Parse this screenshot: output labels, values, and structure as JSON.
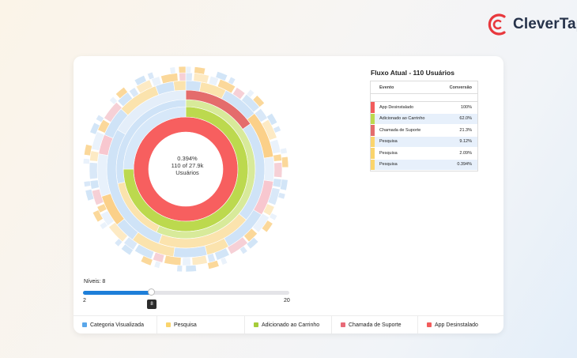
{
  "brand": {
    "name": "CleverTap",
    "accent": "#e8383d"
  },
  "center": {
    "line1": "0.394%",
    "line2": "110 of 27.9k",
    "line3": "Usuários"
  },
  "flow": {
    "title": "Fluxo Atual - 110 Usuários",
    "col_event": "Evento",
    "col_conversion": "Conversão",
    "rows": [
      {
        "event": "App Desinstalado",
        "conversion": "100%",
        "color": "#f25c5c"
      },
      {
        "event": "Adicionado ao Carrinho",
        "conversion": "62.0%",
        "color": "#bcd94e"
      },
      {
        "event": "Chamada de Suporte",
        "conversion": "21.3%",
        "color": "#e46c6c"
      },
      {
        "event": "Pesquisa",
        "conversion": "9.12%",
        "color": "#fad46c"
      },
      {
        "event": "Pesquisa",
        "conversion": "2.09%",
        "color": "#fad46c"
      },
      {
        "event": "Pesquisa",
        "conversion": "0.394%",
        "color": "#fad46c"
      }
    ]
  },
  "levels": {
    "label": "Níveis: 8",
    "min": "2",
    "max": "20",
    "value": "8",
    "min_num": 2,
    "max_num": 20,
    "value_num": 8,
    "accent": "#1e7fd9"
  },
  "legend": [
    {
      "label": "Categoria Visualizada",
      "color": "#5aa7ea"
    },
    {
      "label": "Pesquisa",
      "color": "#fad46c"
    },
    {
      "label": "Adicionado ao Carrinho",
      "color": "#a6cc3a"
    },
    {
      "label": "Chamada de Suporte",
      "color": "#e86a78"
    },
    {
      "label": "App Desinstalado",
      "color": "#f25c5c"
    }
  ]
}
